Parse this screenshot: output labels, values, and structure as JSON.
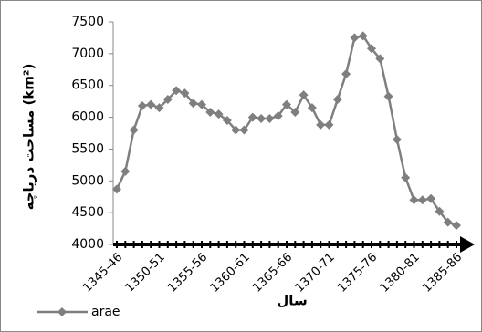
{
  "chart_data": {
    "type": "line",
    "y_label": "مساحت دریاچه (km²)",
    "x_label": "سال",
    "categories": [
      "1345-46",
      null,
      null,
      null,
      null,
      "1350-51",
      null,
      null,
      null,
      null,
      "1355-56",
      null,
      null,
      null,
      null,
      "1360-61",
      null,
      null,
      null,
      null,
      "1365-66",
      null,
      null,
      null,
      null,
      "1370-71",
      null,
      null,
      null,
      null,
      "1375-76",
      null,
      null,
      null,
      null,
      "1380-81",
      null,
      null,
      null,
      null,
      "1385-86"
    ],
    "series": [
      {
        "name": "arae",
        "color": "#7f7f7f",
        "values": [
          4870,
          5150,
          5800,
          6180,
          6200,
          6150,
          6280,
          6420,
          6380,
          6220,
          6200,
          6080,
          6050,
          5950,
          5800,
          5800,
          6000,
          5980,
          5980,
          6020,
          6200,
          6080,
          6350,
          6150,
          5880,
          5880,
          6280,
          6680,
          7250,
          7280,
          7080,
          6920,
          6330,
          5650,
          5050,
          4700,
          4700,
          4720,
          4520,
          4350,
          4300
        ]
      }
    ],
    "ylim": [
      4000,
      7500
    ],
    "yticks": [
      4000,
      4500,
      5000,
      5500,
      6000,
      6500,
      7000,
      7500
    ],
    "legend": "bottom-left"
  }
}
